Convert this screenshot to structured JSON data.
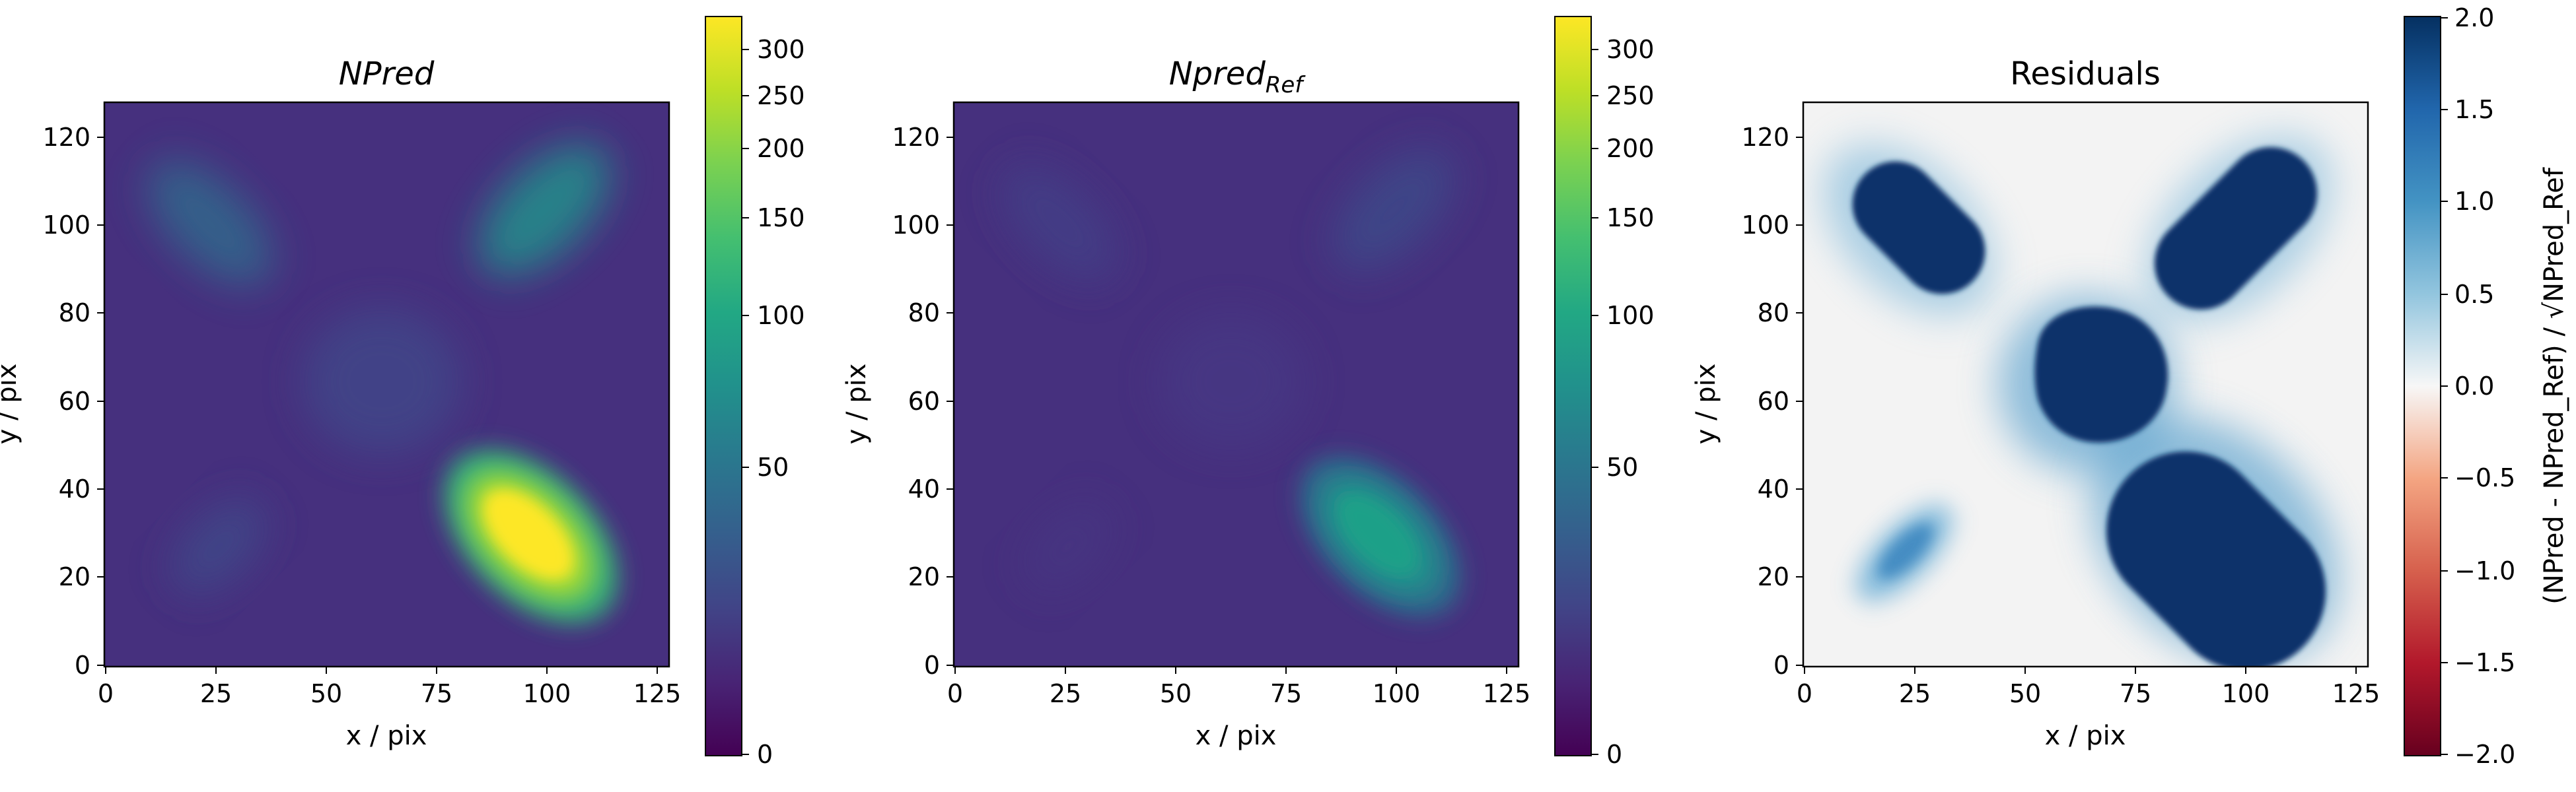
{
  "chart_data": [
    {
      "type": "heatmap",
      "title_main": "NPred",
      "title_sub": "",
      "title_italic": true,
      "xlabel": "x / pix",
      "ylabel": "y / pix",
      "xlim": [
        0,
        128
      ],
      "ylim": [
        0,
        128
      ],
      "xticks": [
        "0",
        "25",
        "50",
        "75",
        "100",
        "125"
      ],
      "yticks": [
        "0",
        "20",
        "40",
        "60",
        "80",
        "100",
        "120"
      ],
      "colormap": "viridis",
      "colorbar": {
        "scale": "sqrt",
        "range": [
          0,
          325
        ],
        "ticks": [
          "0",
          "50",
          "100",
          "150",
          "200",
          "250",
          "300"
        ],
        "label": ""
      },
      "background_value": 12,
      "components": [
        {
          "shape": "elongated-gaussian",
          "x": 97,
          "y": 29,
          "amplitude": 310,
          "orientation": "diagonal-down"
        },
        {
          "shape": "elongated-gaussian",
          "x": 100,
          "y": 100,
          "amplitude": 85,
          "orientation": "diagonal-up"
        },
        {
          "shape": "elongated-gaussian",
          "x": 27,
          "y": 97,
          "amplitude": 48,
          "orientation": "diagonal-down"
        },
        {
          "shape": "elongated-gaussian",
          "x": 30,
          "y": 29,
          "amplitude": 22,
          "orientation": "diagonal-up"
        },
        {
          "shape": "disk",
          "x": 63,
          "y": 65,
          "amplitude": 20,
          "orientation": "round"
        }
      ]
    },
    {
      "type": "heatmap",
      "title_main": "Npred",
      "title_sub": "Ref",
      "title_italic": true,
      "xlabel": "x / pix",
      "ylabel": "y / pix",
      "xlim": [
        0,
        128
      ],
      "ylim": [
        0,
        128
      ],
      "xticks": [
        "0",
        "25",
        "50",
        "75",
        "100",
        "125"
      ],
      "yticks": [
        "0",
        "20",
        "40",
        "60",
        "80",
        "100",
        "120"
      ],
      "colormap": "viridis",
      "colorbar": {
        "scale": "sqrt",
        "range": [
          0,
          325
        ],
        "ticks": [
          "0",
          "50",
          "100",
          "150",
          "200",
          "250",
          "300"
        ],
        "label": ""
      },
      "background_value": 12,
      "components": [
        {
          "shape": "elongated-gaussian",
          "x": 97,
          "y": 29,
          "amplitude": 80,
          "orientation": "diagonal-down"
        },
        {
          "shape": "elongated-gaussian",
          "x": 100,
          "y": 100,
          "amplitude": 12,
          "orientation": "diagonal-up"
        },
        {
          "shape": "elongated-gaussian",
          "x": 27,
          "y": 97,
          "amplitude": 8,
          "orientation": "diagonal-down"
        },
        {
          "shape": "elongated-gaussian",
          "x": 30,
          "y": 29,
          "amplitude": 2,
          "orientation": "diagonal-up"
        },
        {
          "shape": "disk",
          "x": 63,
          "y": 65,
          "amplitude": 2,
          "orientation": "round"
        }
      ]
    },
    {
      "type": "heatmap",
      "title_main": "Residuals",
      "title_sub": "",
      "title_italic": false,
      "xlabel": "x / pix",
      "ylabel": "y / pix",
      "xlim": [
        0,
        128
      ],
      "ylim": [
        0,
        128
      ],
      "xticks": [
        "0",
        "25",
        "50",
        "75",
        "100",
        "125"
      ],
      "yticks": [
        "0",
        "20",
        "40",
        "60",
        "80",
        "100",
        "120"
      ],
      "colormap": "RdBu",
      "colorbar": {
        "scale": "linear",
        "range": [
          -2,
          2
        ],
        "ticks": [
          "−2.0",
          "−1.5",
          "−1.0",
          "−0.5",
          "0.0",
          "0.5",
          "1.0",
          "1.5",
          "2.0"
        ],
        "label": "(NPred - NPred_Ref) / √NPred_Ref"
      },
      "background_value": 0,
      "components": [
        {
          "shape": "elongated-gaussian",
          "x": 97,
          "y": 29,
          "amplitude": 2.0,
          "orientation": "diagonal-down",
          "saturated": true
        },
        {
          "shape": "elongated-gaussian",
          "x": 100,
          "y": 100,
          "amplitude": 2.0,
          "orientation": "diagonal-up",
          "saturated": true
        },
        {
          "shape": "elongated-gaussian",
          "x": 27,
          "y": 97,
          "amplitude": 2.0,
          "orientation": "diagonal-down",
          "saturated": true
        },
        {
          "shape": "elongated-gaussian",
          "x": 30,
          "y": 29,
          "amplitude": 1.0,
          "orientation": "diagonal-up"
        },
        {
          "shape": "disk",
          "x": 63,
          "y": 65,
          "amplitude": 2.0,
          "orientation": "round",
          "saturated": true
        }
      ]
    }
  ]
}
